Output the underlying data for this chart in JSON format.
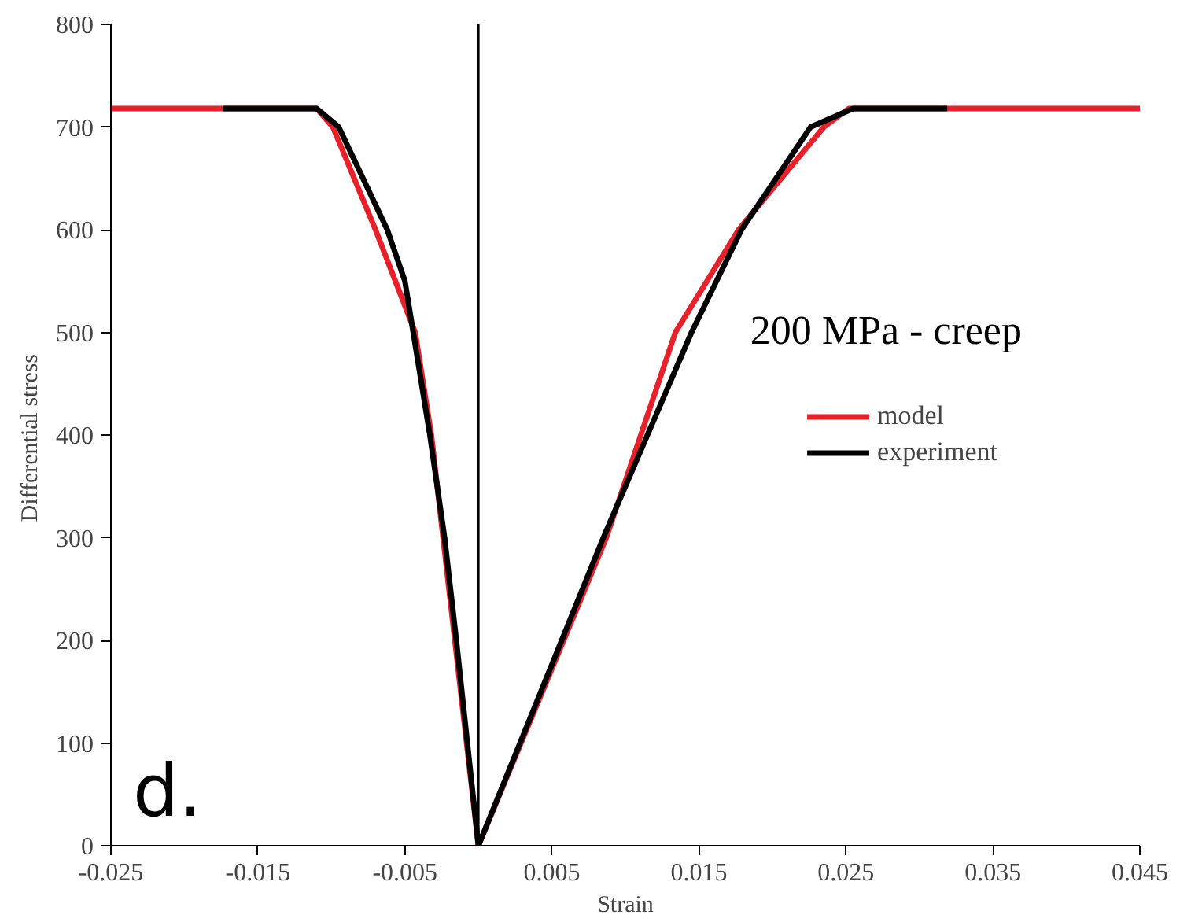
{
  "chart_data": {
    "type": "line",
    "xlabel": "Strain",
    "ylabel": "Differential  stress",
    "xlim": [
      -0.025,
      0.045
    ],
    "ylim": [
      0,
      800
    ],
    "xticks": [
      {
        "value": -0.025,
        "label": "-0.025"
      },
      {
        "value": -0.015,
        "label": "-0.015"
      },
      {
        "value": -0.005,
        "label": "-0.005"
      },
      {
        "value": 0.005,
        "label": "0.005"
      },
      {
        "value": 0.015,
        "label": "0.015"
      },
      {
        "value": 0.025,
        "label": "0.025"
      },
      {
        "value": 0.035,
        "label": "0.035"
      },
      {
        "value": 0.045,
        "label": "0.045"
      }
    ],
    "yticks": [
      0,
      100,
      200,
      300,
      400,
      500,
      600,
      700,
      800
    ],
    "series": [
      {
        "name": "model",
        "color": "#e8202a",
        "x": [
          -0.025,
          -0.011,
          -0.0099,
          -0.007,
          -0.0043,
          -0.0032,
          -0.0016,
          0.0,
          0.0087,
          0.0134,
          0.0177,
          0.0235,
          0.0252,
          0.045
        ],
        "values": [
          718,
          718,
          700,
          600,
          500,
          400,
          200,
          0,
          300,
          500,
          600,
          700,
          718,
          718
        ]
      },
      {
        "name": "experiment",
        "color": "#000000",
        "x": [
          -0.0174,
          -0.011,
          -0.0095,
          -0.0062,
          -0.005,
          -0.0033,
          -0.0023,
          -0.0015,
          0.0,
          0.0085,
          0.0145,
          0.0179,
          0.0226,
          0.0255,
          0.0319
        ],
        "values": [
          718,
          718,
          700,
          600,
          550,
          400,
          300,
          200,
          0,
          300,
          500,
          600,
          700,
          718,
          718
        ]
      }
    ],
    "ref_lines": [
      {
        "axis": "x",
        "value": 0,
        "color": "#000000"
      }
    ],
    "annotations": [
      "200 MPa - creep",
      "d."
    ],
    "legend": "right",
    "grid": false,
    "line_style": "solid",
    "marker": "none"
  }
}
